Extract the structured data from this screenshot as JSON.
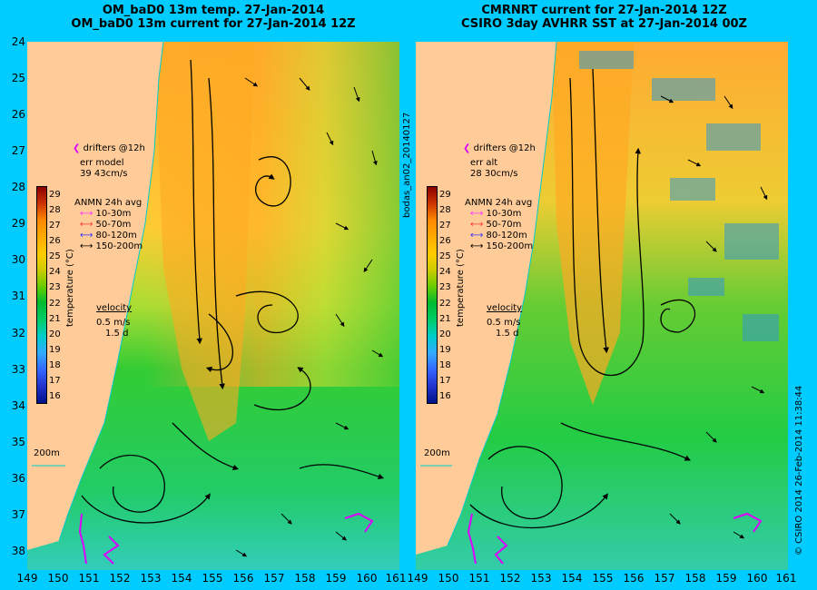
{
  "titles": {
    "left_line1": "OM_baD0 13m temp. 27-Jan-2014",
    "left_line2": "OM_baD0 13m current for 27-Jan-2014 12Z",
    "right_line1": "CMRNRT current for 27-Jan-2014 12Z",
    "right_line2": "CSIRO 3day AVHRR SST at 27-Jan-2014 00Z"
  },
  "axes": {
    "lat_labels": [
      "24",
      "25",
      "26",
      "27",
      "28",
      "29",
      "30",
      "31",
      "32",
      "33",
      "34",
      "35",
      "36",
      "37",
      "38"
    ],
    "lon_labels_left": [
      "149",
      "150",
      "151",
      "152",
      "153",
      "154",
      "155",
      "156",
      "157",
      "158",
      "159",
      "160",
      "161"
    ],
    "lon_labels_right": [
      "149",
      "150",
      "151",
      "152",
      "153",
      "154",
      "155",
      "156",
      "157",
      "158",
      "159",
      "160",
      "161"
    ]
  },
  "left_panel": {
    "drifters_label": "drifters @12h",
    "err_label": "err model",
    "err_values": "39 43cm/s",
    "anmn_title": "ANMN 24h avg",
    "depth_bins": [
      {
        "label": "10-30m",
        "color": "#ff33ff"
      },
      {
        "label": "50-70m",
        "color": "#ff3333"
      },
      {
        "label": "80-120m",
        "color": "#3333ff"
      },
      {
        "label": "150-200m",
        "color": "#000000"
      }
    ],
    "velocity_title": "velocity",
    "velocity_scale": "0.5 m/s",
    "velocity_days": "1.5 d",
    "depth_contour": "200m"
  },
  "right_panel": {
    "drifters_label": "drifters @12h",
    "err_label": "err alt",
    "err_values": "28 30cm/s",
    "anmn_title": "ANMN 24h avg",
    "depth_bins": [
      {
        "label": "10-30m",
        "color": "#ff33ff"
      },
      {
        "label": "50-70m",
        "color": "#ff3333"
      },
      {
        "label": "80-120m",
        "color": "#3333ff"
      },
      {
        "label": "150-200m",
        "color": "#000000"
      }
    ],
    "velocity_title": "velocity",
    "velocity_scale": "0.5 m/s",
    "velocity_days": "1.5 d",
    "depth_contour": "200m"
  },
  "colorbar": {
    "ticks": [
      "29",
      "28",
      "27",
      "26",
      "25",
      "24",
      "23",
      "22",
      "21",
      "20",
      "19",
      "18",
      "17",
      "16"
    ],
    "unit_label": "temperature (°C)",
    "colors": [
      "#8b0000",
      "#cc3300",
      "#ff8800",
      "#ffaa00",
      "#ffcc00",
      "#cccc00",
      "#66cc00",
      "#00bb33",
      "#00cc66",
      "#00cccc",
      "#33aaff",
      "#3366ff",
      "#2233cc",
      "#001188"
    ]
  },
  "side_labels": {
    "middle_vertical": "bodas_an02_20140127",
    "right_vertical": "© CSIRO 2014   26-Feb-2014 11:38:44"
  },
  "colors": {
    "background": "#00ccff",
    "land": "#ffcc99",
    "warm_core": "#ffaa33",
    "mid": "#ffcc33",
    "green": "#33cc33",
    "cool": "#33ccaa"
  }
}
